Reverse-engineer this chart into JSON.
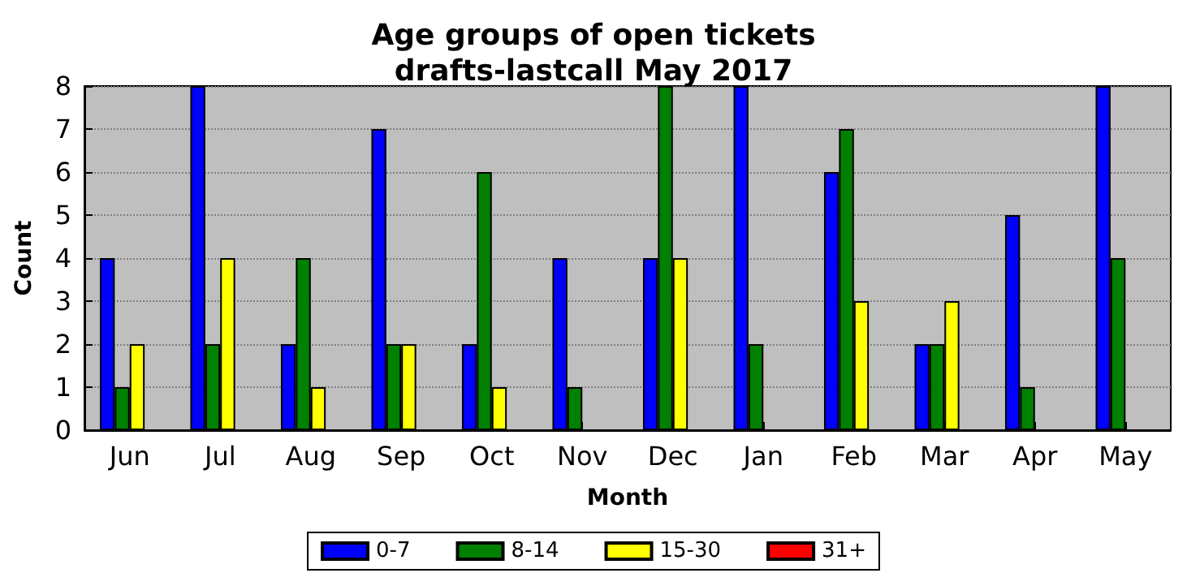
{
  "chart_data": {
    "type": "bar",
    "title": "Age groups of open tickets\ndrafts-lastcall May 2017",
    "xlabel": "Month",
    "ylabel": "Count",
    "categories": [
      "Jun",
      "Jul",
      "Aug",
      "Sep",
      "Oct",
      "Nov",
      "Dec",
      "Jan",
      "Feb",
      "Mar",
      "Apr",
      "May"
    ],
    "series": [
      {
        "name": "0-7",
        "color": "#0000ff",
        "values": [
          4,
          8,
          2,
          7,
          2,
          4,
          4,
          8,
          6,
          2,
          5,
          8
        ]
      },
      {
        "name": "8-14",
        "color": "#008000",
        "values": [
          1,
          2,
          4,
          2,
          6,
          1,
          8,
          2,
          7,
          2,
          1,
          4
        ]
      },
      {
        "name": "15-30",
        "color": "#ffff00",
        "values": [
          2,
          4,
          1,
          2,
          1,
          0,
          4,
          0,
          3,
          3,
          0,
          0
        ]
      },
      {
        "name": "31+",
        "color": "#ff0000",
        "values": [
          0,
          0,
          0,
          0,
          0,
          0,
          0,
          0,
          0,
          0,
          0,
          0
        ]
      }
    ],
    "ylim": [
      0,
      8
    ],
    "yticks": [
      0,
      1,
      2,
      3,
      4,
      5,
      6,
      7,
      8
    ],
    "grid": "y",
    "legend": "bottom"
  }
}
